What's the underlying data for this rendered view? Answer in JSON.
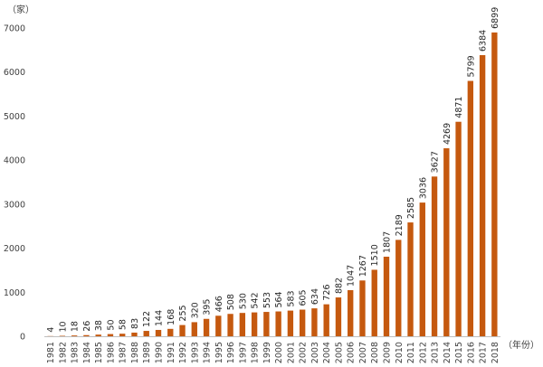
{
  "chart_data": {
    "type": "bar",
    "ylabel": "（家）",
    "xlabel": "（年份）",
    "ylim": [
      0,
      7000
    ],
    "yticks": [
      0,
      1000,
      2000,
      3000,
      4000,
      5000,
      6000,
      7000
    ],
    "grid": false,
    "bar_color": "#C5590F",
    "categories": [
      "1981",
      "1982",
      "1983",
      "1984",
      "1985",
      "1986",
      "1987",
      "1988",
      "1989",
      "1990",
      "1991",
      "1992",
      "1993",
      "1994",
      "1995",
      "1996",
      "1997",
      "1998",
      "1999",
      "2000",
      "2001",
      "2002",
      "2003",
      "2004",
      "2005",
      "2006",
      "2007",
      "2008",
      "2009",
      "2010",
      "2011",
      "2012",
      "2013",
      "2014",
      "2015",
      "2016",
      "2017",
      "2018"
    ],
    "values": [
      4,
      10,
      18,
      26,
      38,
      50,
      58,
      83,
      122,
      144,
      168,
      255,
      320,
      395,
      466,
      508,
      530,
      542,
      553,
      564,
      583,
      605,
      634,
      726,
      882,
      1047,
      1267,
      1510,
      1807,
      2189,
      2585,
      3036,
      3627,
      4269,
      4871,
      5799,
      6384,
      6899
    ]
  }
}
